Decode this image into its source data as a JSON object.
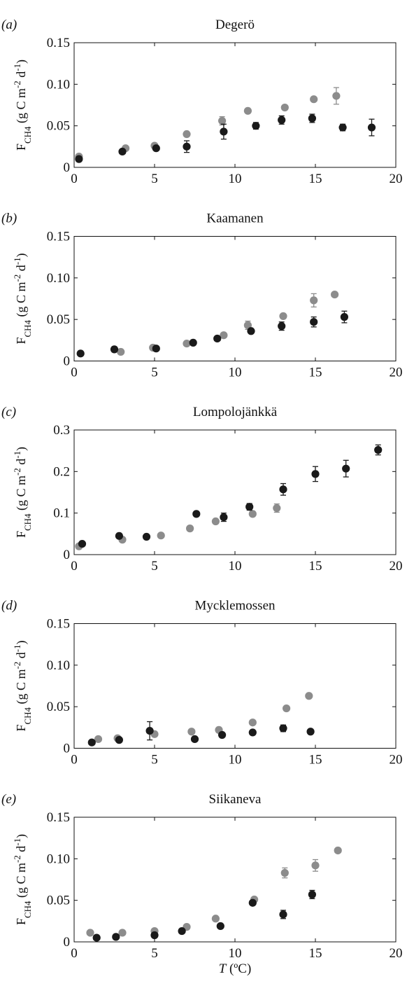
{
  "chart_data": [
    {
      "type": "scatter",
      "panel_label": "(a)",
      "title": "Degerö",
      "ylabel": "F_CH4 (g C m^-2 d^-1)",
      "xlim": [
        0,
        20
      ],
      "ylim": [
        0,
        0.15
      ],
      "xticks": [
        "0",
        "5",
        "10",
        "15",
        "20"
      ],
      "yticks": [
        "0",
        "0.05",
        "0.10",
        "0.15"
      ],
      "series": [
        {
          "color": "#8c8c8c",
          "x": [
            0.3,
            3.2,
            5.0,
            7.0,
            9.2,
            10.8,
            13.1,
            14.9,
            16.3
          ],
          "y": [
            0.013,
            0.023,
            0.026,
            0.04,
            0.056,
            0.068,
            0.072,
            0.082,
            0.086
          ],
          "err": [
            0,
            0,
            0,
            0,
            0.005,
            0,
            0,
            0,
            0.01
          ]
        },
        {
          "color": "#1a1a1a",
          "x": [
            0.3,
            3.0,
            5.1,
            7.0,
            9.3,
            11.3,
            12.9,
            14.8,
            16.7,
            18.5
          ],
          "y": [
            0.01,
            0.019,
            0.023,
            0.025,
            0.043,
            0.05,
            0.057,
            0.059,
            0.048,
            0.048
          ],
          "err": [
            0,
            0,
            0,
            0.007,
            0.009,
            0.004,
            0.005,
            0.005,
            0.004,
            0.01
          ]
        }
      ]
    },
    {
      "type": "scatter",
      "panel_label": "(b)",
      "title": "Kaamanen",
      "ylabel": "F_CH4 (g C m^-2 d^-1)",
      "xlim": [
        0,
        20
      ],
      "ylim": [
        0,
        0.15
      ],
      "xticks": [
        "0",
        "5",
        "10",
        "15",
        "20"
      ],
      "yticks": [
        "0",
        "0.05",
        "0.10",
        "0.15"
      ],
      "series": [
        {
          "color": "#8c8c8c",
          "x": [
            2.9,
            4.9,
            7.0,
            9.3,
            10.8,
            13.0,
            14.9,
            16.2
          ],
          "y": [
            0.011,
            0.016,
            0.021,
            0.031,
            0.043,
            0.054,
            0.073,
            0.08
          ],
          "err": [
            0,
            0,
            0,
            0,
            0.005,
            0,
            0.008,
            0
          ]
        },
        {
          "color": "#1a1a1a",
          "x": [
            0.4,
            2.5,
            5.1,
            7.4,
            8.9,
            11.0,
            12.9,
            14.9,
            16.8
          ],
          "y": [
            0.009,
            0.014,
            0.015,
            0.022,
            0.027,
            0.036,
            0.042,
            0.047,
            0.053
          ],
          "err": [
            0,
            0.003,
            0,
            0,
            0,
            0,
            0.005,
            0.006,
            0.007
          ]
        }
      ]
    },
    {
      "type": "scatter",
      "panel_label": "(c)",
      "title": "Lompolojänkkä",
      "ylabel": "F_CH4 (g C m^-2 d^-1)",
      "xlim": [
        0,
        20
      ],
      "ylim": [
        0,
        0.3
      ],
      "xticks": [
        "0",
        "5",
        "10",
        "15",
        "20"
      ],
      "yticks": [
        "0",
        "0.1",
        "0.2",
        "0.3"
      ],
      "series": [
        {
          "color": "#8c8c8c",
          "x": [
            0.3,
            3.0,
            5.4,
            7.2,
            8.8,
            11.1,
            12.6
          ],
          "y": [
            0.02,
            0.036,
            0.046,
            0.063,
            0.08,
            0.098,
            0.112
          ],
          "err": [
            0,
            0,
            0,
            0,
            0,
            0,
            0.01
          ]
        },
        {
          "color": "#1a1a1a",
          "x": [
            0.5,
            2.8,
            4.5,
            7.6,
            9.3,
            10.9,
            13.0,
            15.0,
            16.9,
            18.9
          ],
          "y": [
            0.026,
            0.045,
            0.043,
            0.098,
            0.09,
            0.115,
            0.157,
            0.194,
            0.207,
            0.252
          ],
          "err": [
            0,
            0.005,
            0,
            0,
            0.01,
            0.008,
            0.014,
            0.018,
            0.02,
            0.012
          ]
        }
      ]
    },
    {
      "type": "scatter",
      "panel_label": "(d)",
      "title": "Mycklemossen",
      "ylabel": "F_CH4 (g C m^-2 d^-1)",
      "xlim": [
        0,
        20
      ],
      "ylim": [
        0,
        0.15
      ],
      "xticks": [
        "0",
        "5",
        "10",
        "15",
        "20"
      ],
      "yticks": [
        "0",
        "0.05",
        "0.10",
        "0.15"
      ],
      "series": [
        {
          "color": "#8c8c8c",
          "x": [
            1.5,
            2.7,
            5.0,
            7.3,
            9.0,
            11.1,
            13.2,
            14.6
          ],
          "y": [
            0.011,
            0.012,
            0.017,
            0.02,
            0.022,
            0.031,
            0.048,
            0.063
          ],
          "err": [
            0,
            0,
            0,
            0,
            0,
            0,
            0,
            0
          ]
        },
        {
          "color": "#1a1a1a",
          "x": [
            1.1,
            2.8,
            4.7,
            7.5,
            9.2,
            11.1,
            13.0,
            14.7
          ],
          "y": [
            0.007,
            0.01,
            0.021,
            0.011,
            0.016,
            0.019,
            0.024,
            0.02
          ],
          "err": [
            0,
            0,
            0.011,
            0,
            0,
            0,
            0.004,
            0
          ]
        }
      ]
    },
    {
      "type": "scatter",
      "panel_label": "(e)",
      "title": "Siikaneva",
      "ylabel": "F_CH4 (g C m^-2 d^-1)",
      "xlabel": "T (ºC)",
      "xlim": [
        0,
        20
      ],
      "ylim": [
        0,
        0.15
      ],
      "xticks": [
        "0",
        "5",
        "10",
        "15",
        "20"
      ],
      "yticks": [
        "0",
        "0.05",
        "0.10",
        "0.15"
      ],
      "series": [
        {
          "color": "#8c8c8c",
          "x": [
            1.0,
            3.0,
            5.0,
            7.0,
            8.8,
            11.2,
            13.1,
            15.0,
            16.4
          ],
          "y": [
            0.011,
            0.011,
            0.013,
            0.018,
            0.028,
            0.051,
            0.083,
            0.092,
            0.11
          ],
          "err": [
            0,
            0,
            0,
            0,
            0,
            0,
            0.006,
            0.007,
            0
          ]
        },
        {
          "color": "#1a1a1a",
          "x": [
            1.4,
            2.6,
            5.0,
            6.7,
            9.1,
            11.1,
            13.0,
            14.8
          ],
          "y": [
            0.005,
            0.006,
            0.008,
            0.013,
            0.019,
            0.047,
            0.033,
            0.057
          ],
          "err": [
            0,
            0,
            0,
            0,
            0,
            0,
            0.005,
            0.005
          ]
        }
      ]
    }
  ]
}
